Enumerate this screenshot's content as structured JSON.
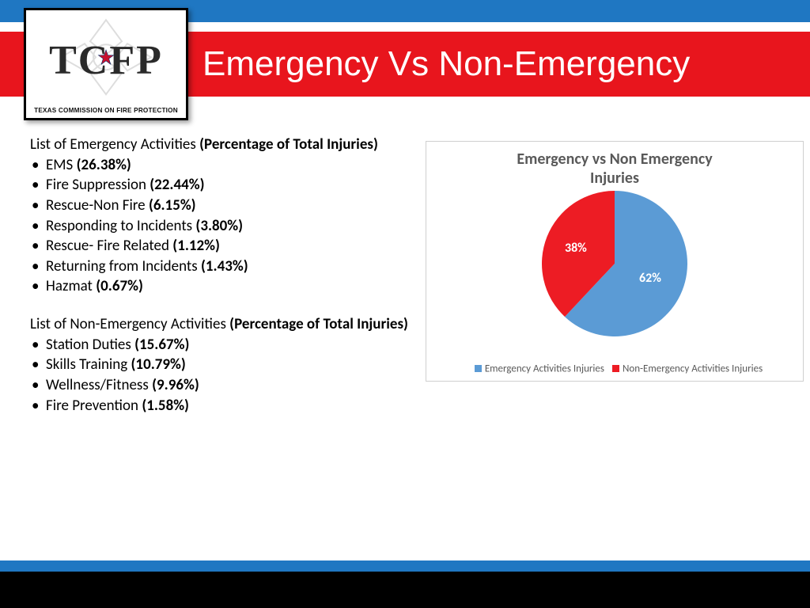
{
  "header": {
    "title": "Emergency Vs Non-Emergency",
    "logo_main": "TCFP",
    "logo_sub": "TEXAS COMMISSION ON FIRE PROTECTION",
    "top_stripe_color": "#1f77c2",
    "red_bar_color": "#e8151d",
    "title_color": "#ffffff",
    "title_fontsize": 44
  },
  "emergency": {
    "heading_prefix": "List of Emergency Activities ",
    "heading_bold": "(Percentage of Total Injuries)",
    "items": [
      {
        "label": "EMS",
        "pct": "(26.38%)"
      },
      {
        "label": "Fire Suppression",
        "pct": "(22.44%)"
      },
      {
        "label": "Rescue-Non Fire",
        "pct": "(6.15%)"
      },
      {
        "label": "Responding to Incidents",
        "pct": "(3.80%)"
      },
      {
        "label": "Rescue- Fire Related",
        "pct": "(1.12%)"
      },
      {
        "label": "Returning from Incidents",
        "pct": "(1.43%)"
      },
      {
        "label": "Hazmat",
        "pct": "(0.67%)"
      }
    ]
  },
  "nonemergency": {
    "heading_prefix": "List of Non-Emergency Activities ",
    "heading_bold": "(Percentage of Total Injuries)",
    "items": [
      {
        "label": "Station Duties",
        "pct": "(15.67%)"
      },
      {
        "label": "Skills Training",
        "pct": "(10.79%)"
      },
      {
        "label": "Wellness/Fitness",
        "pct": "(9.96%)"
      },
      {
        "label": "Fire Prevention",
        "pct": "(1.58%)"
      }
    ]
  },
  "chart": {
    "type": "pie",
    "title_line1": "Emergency vs Non Emergency",
    "title_line2": "Injuries",
    "title_fontsize": 20,
    "title_color": "#595959",
    "border_color": "#cfcfcf",
    "background_color": "#ffffff",
    "diameter": 184,
    "slices": [
      {
        "name": "Emergency Activities Injuries",
        "value": 62,
        "label": "62%",
        "color": "#5b9bd5"
      },
      {
        "name": "Non-Emergency Activities Injuries",
        "value": 38,
        "label": "38%",
        "color": "#ed1c24"
      }
    ],
    "start_angle_deg": -90,
    "label_color": "#ffffff",
    "label_fontsize": 16,
    "legend_fontsize": 13,
    "legend_color": "#595959"
  },
  "footer": {
    "stripe_color": "#1f77c2",
    "bar_color": "#000000"
  },
  "body_font": "Calibri, Arial, sans-serif",
  "body_fontsize": 19
}
